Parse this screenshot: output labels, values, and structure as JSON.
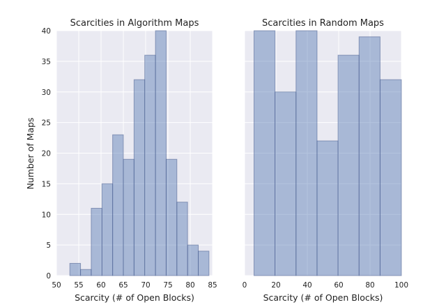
{
  "figure": {
    "ylabel": "Number of Maps",
    "shared_y_ticks": [
      "0",
      "5",
      "10",
      "15",
      "20",
      "25",
      "30",
      "35",
      "40"
    ]
  },
  "chart_data": [
    {
      "type": "bar",
      "title": "Scarcities in Algorithm Maps",
      "xlabel": "Scarcity (# of Open Blocks)",
      "ylabel": "Number of Maps",
      "xlim": [
        50,
        85
      ],
      "ylim": [
        0,
        40
      ],
      "x_ticks": [
        "50",
        "55",
        "60",
        "65",
        "70",
        "75",
        "80",
        "85"
      ],
      "grid": true,
      "bar_color": "#4c72b0",
      "bins": [
        {
          "start": 53.0,
          "end": 55.4,
          "count": 2
        },
        {
          "start": 55.4,
          "end": 57.8,
          "count": 1
        },
        {
          "start": 57.8,
          "end": 60.2,
          "count": 11
        },
        {
          "start": 60.2,
          "end": 62.6,
          "count": 15
        },
        {
          "start": 62.6,
          "end": 65.0,
          "count": 23
        },
        {
          "start": 65.0,
          "end": 67.4,
          "count": 19
        },
        {
          "start": 67.4,
          "end": 69.8,
          "count": 32
        },
        {
          "start": 69.8,
          "end": 72.2,
          "count": 36
        },
        {
          "start": 72.2,
          "end": 74.6,
          "count": 40
        },
        {
          "start": 74.6,
          "end": 77.0,
          "count": 19
        },
        {
          "start": 77.0,
          "end": 79.4,
          "count": 12
        },
        {
          "start": 79.4,
          "end": 81.8,
          "count": 5
        },
        {
          "start": 81.8,
          "end": 84.2,
          "count": 4
        }
      ]
    },
    {
      "type": "bar",
      "title": "Scarcities in Random Maps",
      "xlabel": "Scarcity (# of Open Blocks)",
      "xlim": [
        0,
        100
      ],
      "ylim": [
        0,
        40
      ],
      "x_ticks": [
        "0",
        "20",
        "40",
        "60",
        "80",
        "100"
      ],
      "grid": true,
      "bar_color": "#4c72b0",
      "bins": [
        {
          "start": 6,
          "end": 19.4,
          "count": 40
        },
        {
          "start": 19.4,
          "end": 32.8,
          "count": 30
        },
        {
          "start": 32.8,
          "end": 46.2,
          "count": 40
        },
        {
          "start": 46.2,
          "end": 59.6,
          "count": 22
        },
        {
          "start": 59.6,
          "end": 73.0,
          "count": 36
        },
        {
          "start": 73.0,
          "end": 86.4,
          "count": 39
        },
        {
          "start": 86.4,
          "end": 100.0,
          "count": 32
        }
      ]
    }
  ]
}
